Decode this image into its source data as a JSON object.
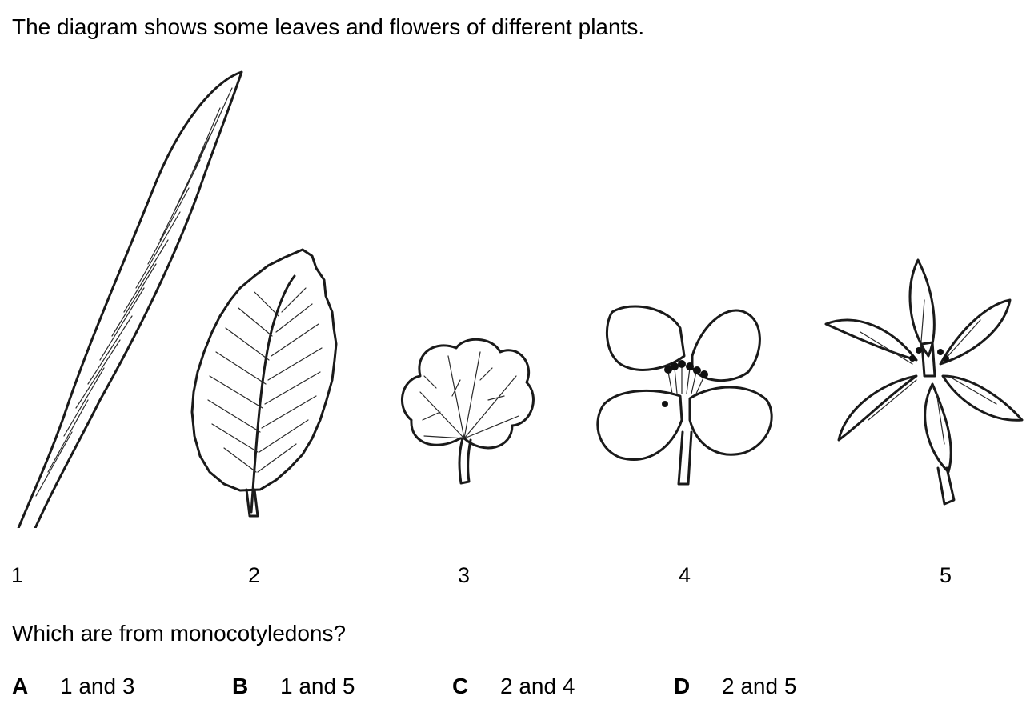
{
  "intro_text": "The diagram shows some leaves and flowers of different plants.",
  "figure_labels": [
    "1",
    "2",
    "3",
    "4",
    "5"
  ],
  "question_text": "Which are from monocotyledons?",
  "options": [
    {
      "letter": "A",
      "text": "1 and 3"
    },
    {
      "letter": "B",
      "text": "1 and 5"
    },
    {
      "letter": "C",
      "text": "2 and 4"
    },
    {
      "letter": "D",
      "text": "2 and 5"
    }
  ]
}
